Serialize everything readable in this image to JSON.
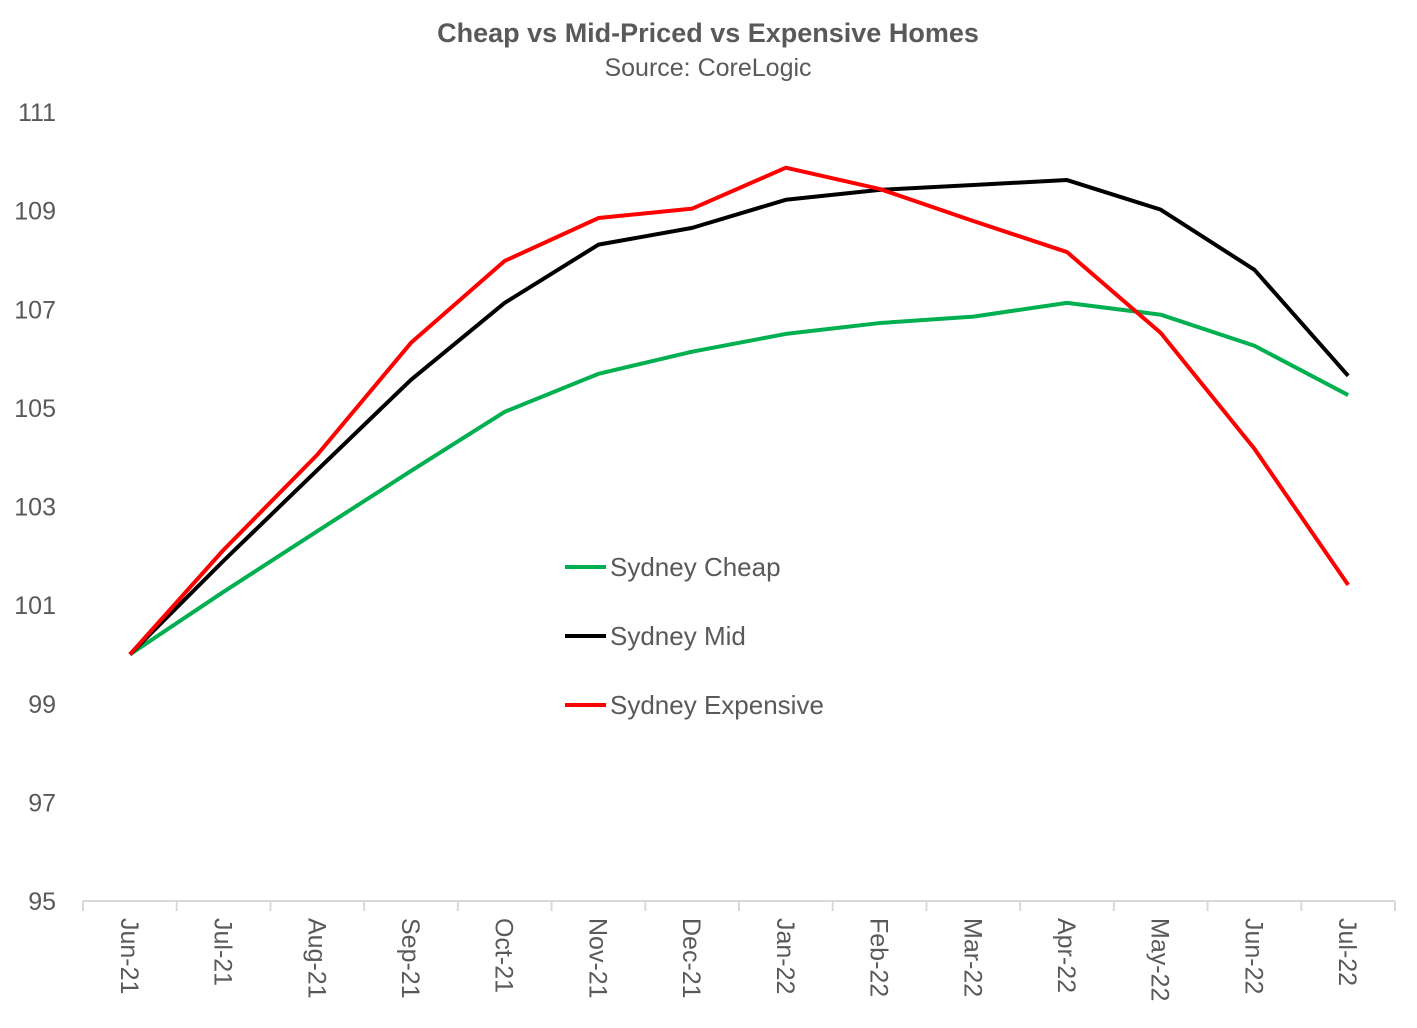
{
  "chart_data": {
    "type": "line",
    "title": "Cheap vs Mid-Priced vs Expensive Homes",
    "subtitle": "Source: CoreLogic",
    "xlabel": "",
    "ylabel": "",
    "ylim": [
      95,
      111
    ],
    "yticks": [
      95,
      97,
      99,
      101,
      103,
      105,
      107,
      109,
      111
    ],
    "grid": false,
    "legend_position": "center",
    "categories": [
      "Jun-21",
      "Jul-21",
      "Aug-21",
      "Sep-21",
      "Oct-21",
      "Nov-21",
      "Dec-21",
      "Jan-22",
      "Feb-22",
      "Mar-22",
      "Apr-22",
      "May-22",
      "Jun-22",
      "Jul-22"
    ],
    "series": [
      {
        "name": "Sydney Cheap",
        "color": "#00B050",
        "values": [
          100,
          101.27,
          102.5,
          103.72,
          104.92,
          105.69,
          106.14,
          106.5,
          106.72,
          106.85,
          107.13,
          106.89,
          106.26,
          105.26
        ]
      },
      {
        "name": "Sydney Mid",
        "color": "#000000",
        "values": [
          100,
          101.9,
          103.74,
          105.57,
          107.13,
          108.31,
          108.65,
          109.22,
          109.42,
          109.52,
          109.62,
          109.02,
          107.8,
          105.65
        ]
      },
      {
        "name": "Sydney Expensive",
        "color": "#FF0000",
        "values": [
          100,
          102.12,
          104.05,
          106.32,
          107.98,
          108.85,
          109.04,
          109.87,
          109.44,
          108.79,
          108.16,
          106.52,
          104.17,
          101.41
        ]
      }
    ]
  }
}
